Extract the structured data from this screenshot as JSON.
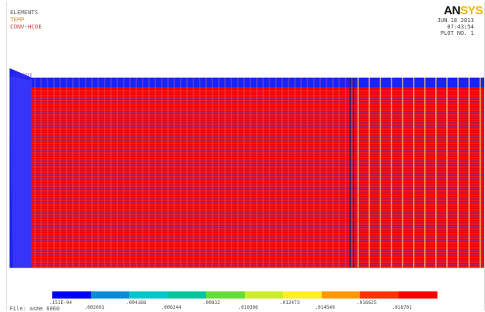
{
  "window": {
    "labels": [
      "ELEMENTS",
      "TEMP",
      "CONV-HCOE"
    ],
    "logo": [
      "AN",
      "SYS"
    ],
    "date": "JUN 18 2013",
    "time": "07:43:54",
    "plot_no": "PLOT NO.   1",
    "file": "File: asme 6060"
  },
  "legend": {
    "colors": [
      "#0000ff",
      "#0a8cd6",
      "#00c8c8",
      "#00c89a",
      "#66dd33",
      "#ccee22",
      "#ffee22",
      "#ff9900",
      "#ff3300",
      "#ff0000"
    ],
    "values_low": [
      ".151E-04",
      ".004168",
      ".00832",
      ".012473",
      ".016625"
    ],
    "values_high": [
      ".002091",
      ".006244",
      ".010396",
      ".014549",
      ".018701"
    ]
  },
  "model_colors": {
    "base": "#f20000",
    "band": "#1e22ee",
    "mesh": "#ff6a6a",
    "node": "#ffcc66"
  }
}
